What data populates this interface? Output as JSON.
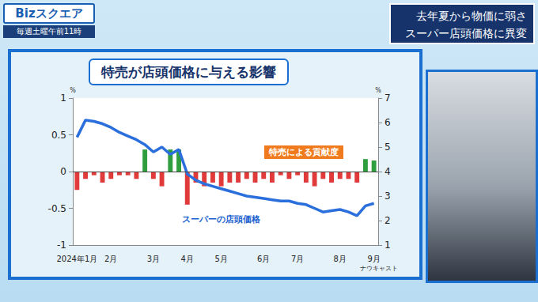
{
  "header": {
    "logo": "Bizスクエア",
    "schedule": "毎週土曜午前11時",
    "headline": [
      "去年夏から物価に弱さ",
      "スーパー店頭価格に異変"
    ]
  },
  "chart_data": {
    "type": "bar",
    "title": "特売が店頭価格に与える影響",
    "source": "ナウキャスト",
    "categories": [
      "2024年1月",
      null,
      null,
      null,
      "2月",
      null,
      null,
      null,
      null,
      "3月",
      null,
      null,
      null,
      "4月",
      null,
      null,
      null,
      "5月",
      null,
      null,
      null,
      null,
      "6月",
      null,
      null,
      null,
      "7月",
      null,
      null,
      null,
      null,
      "8月",
      null,
      null,
      null,
      "9月"
    ],
    "series": [
      {
        "name": "特売による貢献度",
        "type": "bar",
        "values": [
          -0.25,
          -0.1,
          -0.05,
          -0.15,
          -0.1,
          -0.05,
          -0.05,
          -0.1,
          0.3,
          -0.1,
          -0.2,
          0.3,
          0.3,
          -0.45,
          -0.15,
          -0.2,
          -0.15,
          -0.2,
          -0.15,
          -0.15,
          -0.1,
          -0.15,
          -0.1,
          -0.15,
          -0.05,
          -0.1,
          -0.05,
          -0.15,
          -0.2,
          -0.1,
          -0.15,
          -0.1,
          -0.1,
          -0.15,
          0.17,
          0.15
        ],
        "colors": [
          "#e03a3a",
          "#e03a3a",
          "#e03a3a",
          "#e03a3a",
          "#e03a3a",
          "#e03a3a",
          "#e03a3a",
          "#e03a3a",
          "#2e9e3e",
          "#e03a3a",
          "#e03a3a",
          "#2e9e3e",
          "#2e9e3e",
          "#e03a3a",
          "#e03a3a",
          "#e03a3a",
          "#e03a3a",
          "#e03a3a",
          "#e03a3a",
          "#e03a3a",
          "#e03a3a",
          "#e03a3a",
          "#e03a3a",
          "#e03a3a",
          "#e03a3a",
          "#e03a3a",
          "#e03a3a",
          "#e03a3a",
          "#e03a3a",
          "#e03a3a",
          "#e03a3a",
          "#e03a3a",
          "#e03a3a",
          "#e03a3a",
          "#2e9e3e",
          "#2e9e3e"
        ]
      },
      {
        "name": "スーパーの店頭価格",
        "type": "line",
        "axis": "y2",
        "color": "#2a6fdb",
        "values": [
          5.4,
          6.1,
          6.05,
          5.95,
          5.8,
          5.6,
          5.45,
          5.3,
          5.1,
          4.8,
          5.0,
          4.7,
          4.9,
          3.9,
          3.65,
          3.5,
          3.4,
          3.3,
          3.2,
          3.1,
          3.0,
          2.95,
          2.9,
          2.85,
          2.8,
          2.8,
          2.7,
          2.65,
          2.5,
          2.35,
          2.4,
          2.45,
          2.35,
          2.2,
          2.6,
          2.7
        ]
      }
    ],
    "ylabel": "%",
    "y2label": "%",
    "ylim": [
      -1,
      1
    ],
    "yticks": [
      -1,
      -0.5,
      0,
      0.5,
      1
    ],
    "y2lim": [
      1,
      7
    ],
    "y2ticks": [
      1,
      2,
      3,
      4,
      5,
      6,
      7
    ],
    "grid": false
  }
}
